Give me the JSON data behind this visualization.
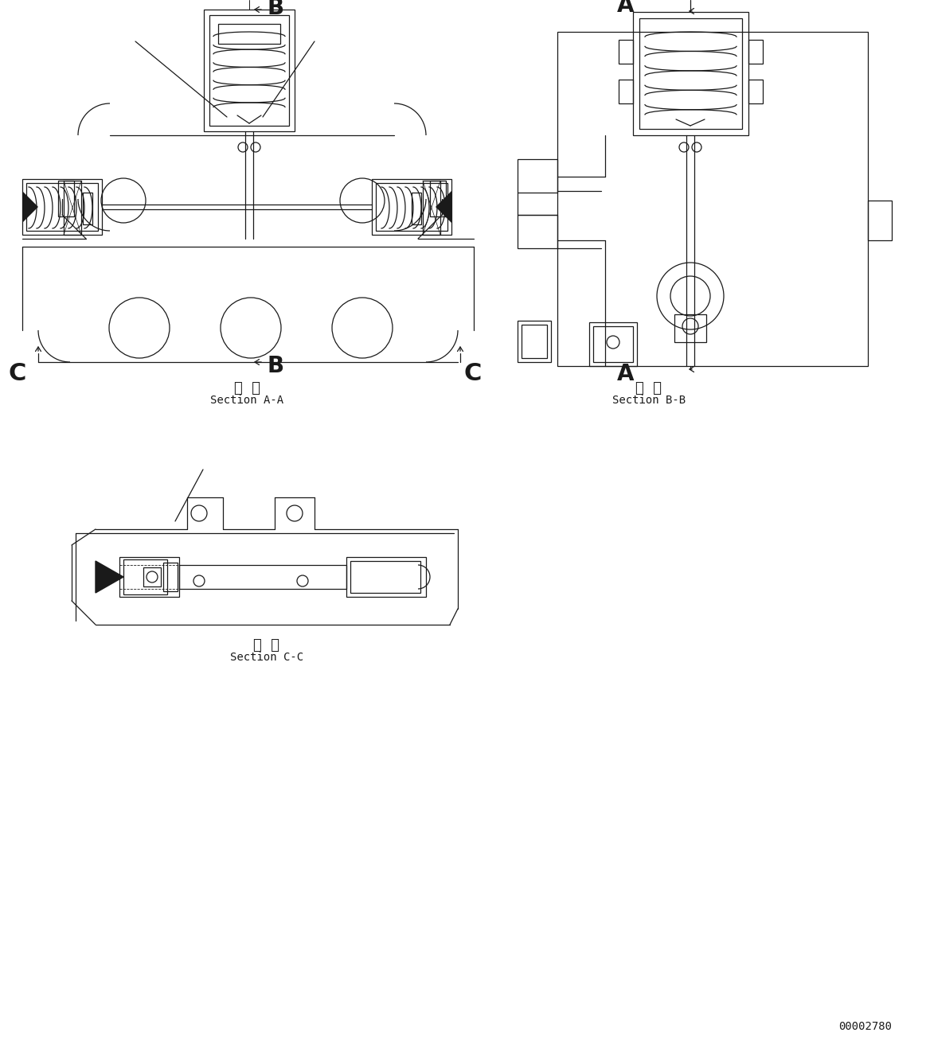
{
  "bg": "#ffffff",
  "lc": "#1a1a1a",
  "lw": 0.9,
  "fw": 11.63,
  "fh": 13.22,
  "dpi": 100,
  "sec_aa": "断  面\nSection A-A",
  "sec_bb": "断  面\nSection B-B",
  "sec_cc": "断  面\nSection C-C",
  "doc": "00002780"
}
